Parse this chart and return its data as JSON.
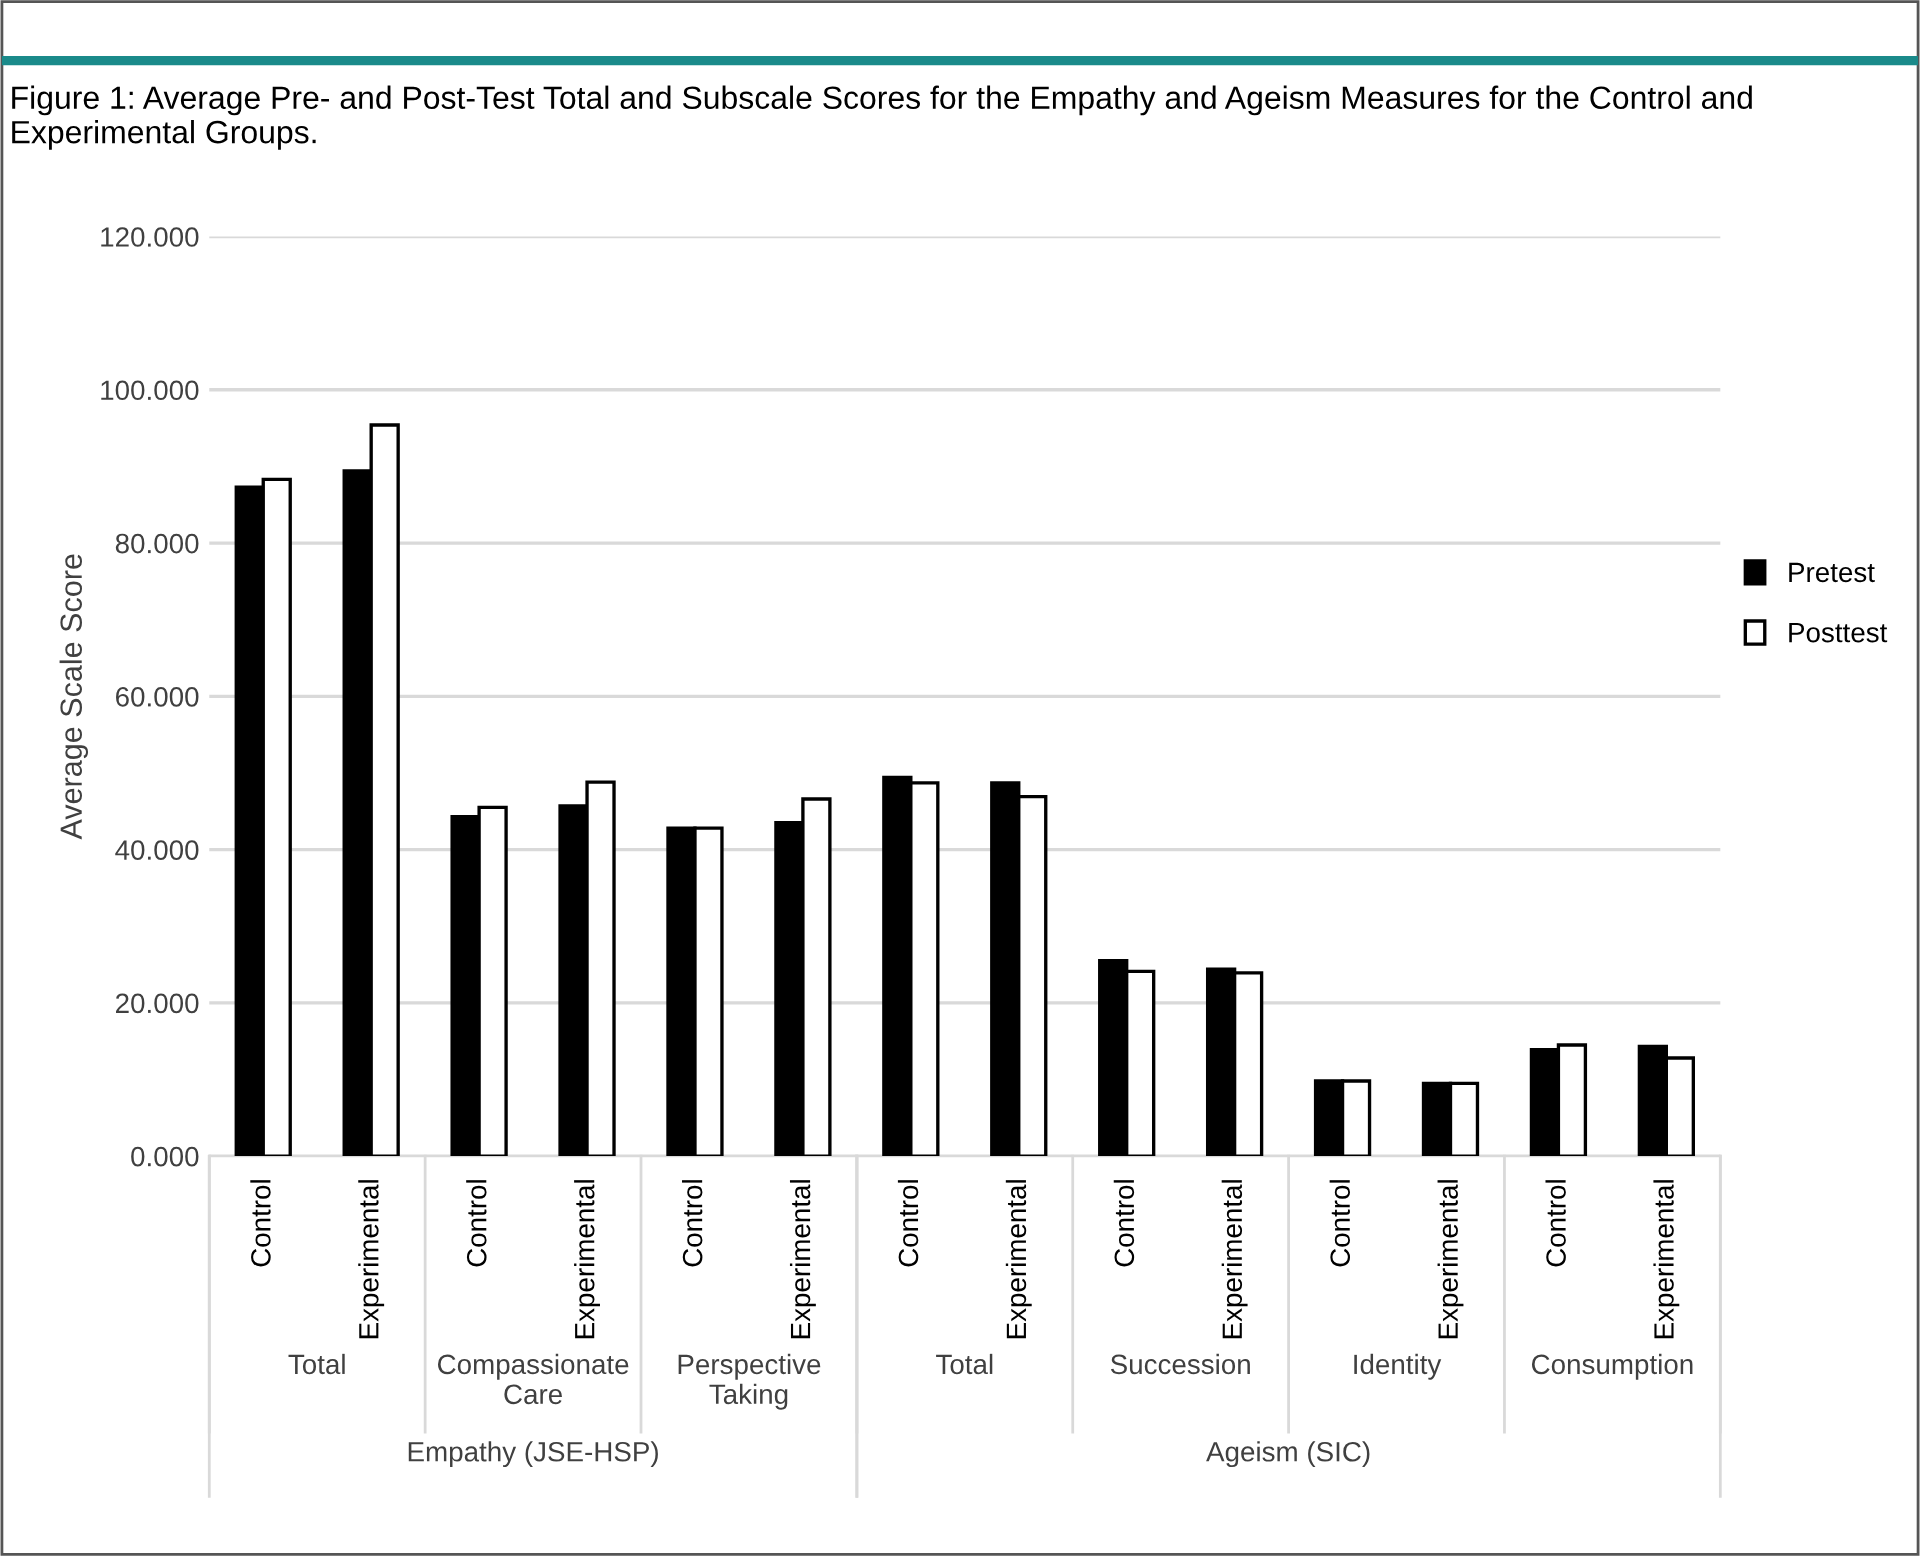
{
  "chart_data": {
    "type": "bar",
    "title": "Figure 1: Average Pre- and Post-Test Total and Subscale Scores for the Empathy and Ageism Measures for the Control and Experimental Groups.",
    "ylabel": "Average Scale Score",
    "categories": [
      "Control",
      "Experimental",
      "Control",
      "Experimental",
      "Control",
      "Experimental",
      "Control",
      "Experimental",
      "Control",
      "Experimental",
      "Control",
      "Experimental",
      "Control",
      "Experimental"
    ],
    "series": [
      {
        "name": "Pretest",
        "color": "#000000",
        "values": [
          87.3,
          89.4,
          44.3,
          45.7,
          42.8,
          43.5,
          49.4,
          48.7,
          25.5,
          24.4,
          9.8,
          9.5,
          13.9,
          14.3
        ]
      },
      {
        "name": "Posttest",
        "color": "#ffffff",
        "values": [
          88.3,
          95.4,
          45.5,
          48.8,
          42.8,
          46.6,
          48.7,
          46.9,
          24.1,
          23.9,
          9.8,
          9.5,
          14.5,
          12.8
        ]
      }
    ],
    "annotations": [
      "Total",
      "Compassionate Care",
      "Perspective Taking",
      "Total",
      "Succession",
      "Identity",
      "Consumption",
      "Empathy (JSE-HSP)",
      "Ageism (SIC)"
    ],
    "ylim": [
      0,
      120
    ],
    "yticks": [
      {
        "value": 0,
        "label": "0.000"
      },
      {
        "value": 20,
        "label": "20.000"
      },
      {
        "value": 40,
        "label": "40.000"
      },
      {
        "value": 60,
        "label": "60.000"
      },
      {
        "value": 80,
        "label": "80.000"
      },
      {
        "value": 100,
        "label": "100.000"
      },
      {
        "value": 120,
        "label": "120.000"
      }
    ],
    "grid": "y",
    "legend": "right"
  }
}
